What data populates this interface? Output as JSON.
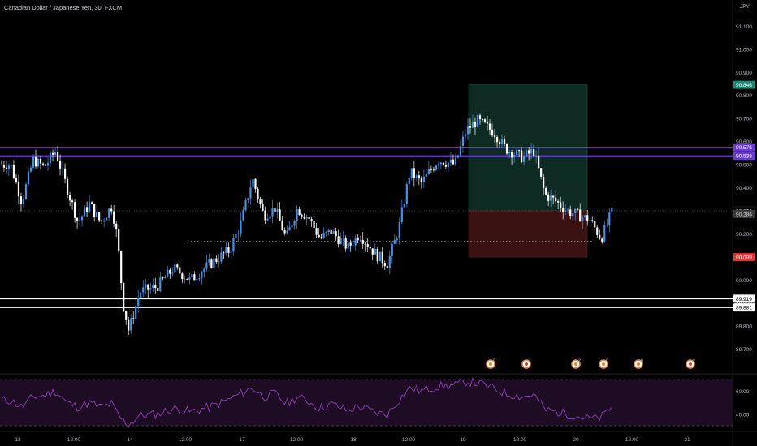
{
  "header": {
    "title": "Canadian Dollar / Japanese Yen, 30, FXCM",
    "currency": "JPY"
  },
  "colors": {
    "background": "#000000",
    "candle": "#4a90e2",
    "candle_alt": "#ffffff",
    "purple_line": "#7b2cf5",
    "white_line": "#ffffff",
    "target_fill": "#0d2b23",
    "stop_fill": "#3a1212",
    "rsi_fill": "#1e0b24",
    "rsi_line": "#8e3fb6",
    "badge_green": "#1b8a72",
    "badge_purple": "#6a3ad6",
    "badge_red": "#e53935"
  },
  "price_axis": {
    "ticks": [
      "91.100",
      "91.000",
      "90.900",
      "90.800",
      "90.700",
      "90.600",
      "90.500",
      "90.400",
      "90.300",
      "90.200",
      "90.100",
      "90.000",
      "89.900",
      "89.800",
      "89.700"
    ]
  },
  "price_labels": [
    {
      "value": "90.846",
      "kind": "target"
    },
    {
      "value": "90.575",
      "kind": "purple"
    },
    {
      "value": "90.538",
      "kind": "purple"
    },
    {
      "value": "90.300",
      "kind": "current"
    },
    {
      "value": "90.286",
      "kind": "gray"
    },
    {
      "value": "90.099",
      "kind": "stop"
    },
    {
      "value": "89.919",
      "kind": "white"
    },
    {
      "value": "89.881",
      "kind": "white"
    }
  ],
  "rsi_axis": {
    "ticks": [
      "60.00",
      "40.00"
    ]
  },
  "time_axis": {
    "ticks": [
      "13",
      "12:00",
      "14",
      "12:00",
      "17",
      "12:00",
      "18",
      "12:00",
      "19",
      "12:00",
      "20",
      "12:00",
      "21"
    ]
  },
  "event_badges": [
    "0",
    "1",
    "2",
    "0",
    "0",
    "2"
  ],
  "chart_data": {
    "type": "candlestick",
    "symbol": "Canadian Dollar / Japanese Yen, 30, FXCM",
    "ylim": [
      89.66,
      91.14
    ],
    "horizontal_levels": [
      90.575,
      90.538,
      89.919,
      89.881
    ],
    "dotted_level": 90.166,
    "position": {
      "entry": 90.3,
      "target": 90.846,
      "stop": 90.099
    },
    "close_path": [
      [
        13.0,
        90.5
      ],
      [
        13.1,
        90.34
      ],
      [
        13.2,
        90.52
      ],
      [
        13.3,
        90.49
      ],
      [
        13.4,
        90.56
      ],
      [
        13.5,
        90.4
      ],
      [
        13.6,
        90.25
      ],
      [
        13.7,
        90.33
      ],
      [
        13.8,
        90.25
      ],
      [
        13.9,
        90.32
      ],
      [
        13.95,
        90.18
      ],
      [
        14.0,
        89.9
      ],
      [
        14.05,
        89.78
      ],
      [
        14.15,
        89.95
      ],
      [
        14.3,
        89.97
      ],
      [
        14.45,
        90.05
      ],
      [
        14.6,
        90.0
      ],
      [
        14.8,
        90.08
      ],
      [
        14.95,
        90.13
      ],
      [
        15.05,
        90.25
      ],
      [
        15.15,
        90.44
      ],
      [
        15.25,
        90.28
      ],
      [
        15.35,
        90.31
      ],
      [
        15.45,
        90.18
      ],
      [
        15.55,
        90.31
      ],
      [
        15.65,
        90.27
      ],
      [
        15.75,
        90.18
      ],
      [
        15.85,
        90.21
      ],
      [
        16.0,
        90.14
      ],
      [
        16.1,
        90.2
      ],
      [
        16.25,
        90.11
      ],
      [
        16.35,
        90.07
      ],
      [
        16.45,
        90.22
      ],
      [
        16.55,
        90.47
      ],
      [
        16.65,
        90.42
      ],
      [
        16.8,
        90.52
      ],
      [
        16.95,
        90.5
      ],
      [
        17.05,
        90.65
      ],
      [
        17.15,
        90.69
      ],
      [
        17.3,
        90.64
      ],
      [
        17.4,
        90.57
      ],
      [
        17.55,
        90.53
      ],
      [
        17.65,
        90.56
      ],
      [
        17.75,
        90.37
      ],
      [
        17.85,
        90.34
      ],
      [
        17.95,
        90.3
      ],
      [
        18.05,
        90.28
      ],
      [
        18.15,
        90.26
      ],
      [
        18.25,
        90.18
      ],
      [
        18.35,
        90.3
      ]
    ],
    "rsi_ylim": [
      30,
      70
    ],
    "rsi_bands": [
      70,
      30
    ],
    "rsi_path": [
      [
        13.0,
        52
      ],
      [
        13.1,
        46
      ],
      [
        13.2,
        55
      ],
      [
        13.3,
        56
      ],
      [
        13.4,
        60
      ],
      [
        13.5,
        50
      ],
      [
        13.6,
        46
      ],
      [
        13.7,
        50
      ],
      [
        13.8,
        46
      ],
      [
        13.9,
        49
      ],
      [
        13.95,
        40
      ],
      [
        14.0,
        34
      ],
      [
        14.05,
        31
      ],
      [
        14.15,
        39
      ],
      [
        14.3,
        40
      ],
      [
        14.45,
        45
      ],
      [
        14.6,
        42
      ],
      [
        14.8,
        47
      ],
      [
        14.95,
        53
      ],
      [
        15.05,
        58
      ],
      [
        15.15,
        63
      ],
      [
        15.25,
        55
      ],
      [
        15.35,
        58
      ],
      [
        15.45,
        49
      ],
      [
        15.55,
        55
      ],
      [
        15.65,
        51
      ],
      [
        15.75,
        45
      ],
      [
        15.85,
        49
      ],
      [
        16.0,
        43
      ],
      [
        16.1,
        47
      ],
      [
        16.25,
        41
      ],
      [
        16.35,
        40
      ],
      [
        16.45,
        52
      ],
      [
        16.55,
        63
      ],
      [
        16.65,
        60
      ],
      [
        16.8,
        64
      ],
      [
        16.95,
        65
      ],
      [
        17.05,
        68
      ],
      [
        17.15,
        67
      ],
      [
        17.3,
        62
      ],
      [
        17.4,
        58
      ],
      [
        17.55,
        55
      ],
      [
        17.65,
        57
      ],
      [
        17.75,
        44
      ],
      [
        17.85,
        42
      ],
      [
        17.95,
        40
      ],
      [
        18.05,
        38
      ],
      [
        18.15,
        36
      ],
      [
        18.25,
        37
      ],
      [
        18.35,
        47
      ]
    ]
  }
}
